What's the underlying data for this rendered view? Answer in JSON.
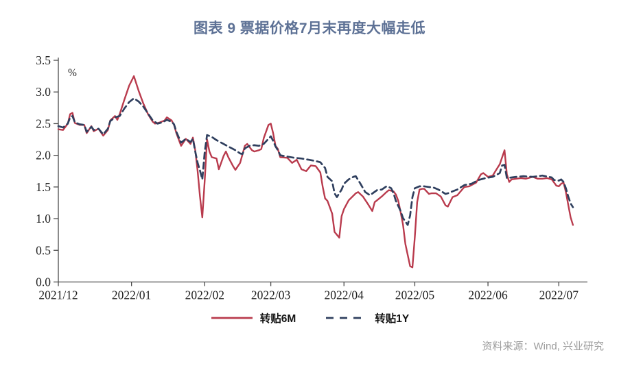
{
  "source_note": "资料来源：Wind, 兴业研究",
  "colors": {
    "title_text": "#5d7195",
    "axis": "#4a4a4a",
    "tick_label_text": "#1f1f1f",
    "source_text": "#9c9c9c",
    "series_6m": "#b93b4d",
    "series_1y": "#2f3f5e"
  },
  "chart_data": {
    "type": "line",
    "title": "图表 9 票据价格7月末再度大幅走低",
    "unit_label": "%",
    "xlabel": "",
    "ylabel": "",
    "ylim": [
      0.0,
      3.5
    ],
    "ytick_step": 0.5,
    "ytick_labels": [
      "0.0",
      "0.5",
      "1.0",
      "1.5",
      "2.0",
      "2.5",
      "3.0",
      "3.5"
    ],
    "grid": false,
    "legend_position": "bottom",
    "x_domain": [
      "2021-12-01",
      "2022-07-14"
    ],
    "xticks": [
      {
        "label": "2021/12",
        "date": "2021-12-01"
      },
      {
        "label": "2022/01",
        "date": "2022-01-01"
      },
      {
        "label": "2022/02",
        "date": "2022-02-01"
      },
      {
        "label": "2022/03",
        "date": "2022-03-01"
      },
      {
        "label": "2022/04",
        "date": "2022-04-01"
      },
      {
        "label": "2022/05",
        "date": "2022-05-01"
      },
      {
        "label": "2022/06",
        "date": "2022-06-01"
      },
      {
        "label": "2022/07",
        "date": "2022-07-01"
      }
    ],
    "series": [
      {
        "name": "转贴6M",
        "color": "#b93b4d",
        "line_style": "solid",
        "points": [
          [
            "2021-12-01",
            2.41
          ],
          [
            "2021-12-03",
            2.4
          ],
          [
            "2021-12-05",
            2.5
          ],
          [
            "2021-12-06",
            2.65
          ],
          [
            "2021-12-07",
            2.67
          ],
          [
            "2021-12-08",
            2.51
          ],
          [
            "2021-12-10",
            2.48
          ],
          [
            "2021-12-12",
            2.48
          ],
          [
            "2021-12-13",
            2.35
          ],
          [
            "2021-12-15",
            2.46
          ],
          [
            "2021-12-16",
            2.38
          ],
          [
            "2021-12-18",
            2.42
          ],
          [
            "2021-12-20",
            2.31
          ],
          [
            "2021-12-22",
            2.4
          ],
          [
            "2021-12-23",
            2.55
          ],
          [
            "2021-12-25",
            2.62
          ],
          [
            "2021-12-26",
            2.56
          ],
          [
            "2021-12-27",
            2.65
          ],
          [
            "2021-12-29",
            2.88
          ],
          [
            "2021-12-31",
            3.1
          ],
          [
            "2022-01-02",
            3.25
          ],
          [
            "2022-01-04",
            3.02
          ],
          [
            "2022-01-06",
            2.82
          ],
          [
            "2022-01-08",
            2.65
          ],
          [
            "2022-01-10",
            2.53
          ],
          [
            "2022-01-11",
            2.5
          ],
          [
            "2022-01-13",
            2.52
          ],
          [
            "2022-01-15",
            2.55
          ],
          [
            "2022-01-16",
            2.6
          ],
          [
            "2022-01-18",
            2.55
          ],
          [
            "2022-01-19",
            2.48
          ],
          [
            "2022-01-20",
            2.35
          ],
          [
            "2022-01-22",
            2.15
          ],
          [
            "2022-01-24",
            2.26
          ],
          [
            "2022-01-26",
            2.18
          ],
          [
            "2022-01-27",
            2.28
          ],
          [
            "2022-01-28",
            2.08
          ],
          [
            "2022-01-29",
            1.75
          ],
          [
            "2022-01-30",
            1.35
          ],
          [
            "2022-01-31",
            1.02
          ],
          [
            "2022-02-01",
            1.6
          ],
          [
            "2022-02-02",
            2.25
          ],
          [
            "2022-02-03",
            2.06
          ],
          [
            "2022-02-04",
            1.97
          ],
          [
            "2022-02-06",
            1.95
          ],
          [
            "2022-02-07",
            1.78
          ],
          [
            "2022-02-09",
            1.99
          ],
          [
            "2022-02-10",
            2.06
          ],
          [
            "2022-02-11",
            1.97
          ],
          [
            "2022-02-13",
            1.83
          ],
          [
            "2022-02-14",
            1.77
          ],
          [
            "2022-02-16",
            1.88
          ],
          [
            "2022-02-18",
            2.15
          ],
          [
            "2022-02-19",
            2.18
          ],
          [
            "2022-02-21",
            2.08
          ],
          [
            "2022-02-22",
            2.06
          ],
          [
            "2022-02-24",
            2.08
          ],
          [
            "2022-02-25",
            2.1
          ],
          [
            "2022-02-26",
            2.27
          ],
          [
            "2022-02-28",
            2.48
          ],
          [
            "2022-03-01",
            2.5
          ],
          [
            "2022-03-02",
            2.35
          ],
          [
            "2022-03-03",
            2.15
          ],
          [
            "2022-03-04",
            2.1
          ],
          [
            "2022-03-05",
            1.97
          ],
          [
            "2022-03-08",
            1.96
          ],
          [
            "2022-03-10",
            1.88
          ],
          [
            "2022-03-12",
            1.93
          ],
          [
            "2022-03-14",
            1.78
          ],
          [
            "2022-03-16",
            1.75
          ],
          [
            "2022-03-18",
            1.84
          ],
          [
            "2022-03-20",
            1.83
          ],
          [
            "2022-03-22",
            1.73
          ],
          [
            "2022-03-23",
            1.5
          ],
          [
            "2022-03-24",
            1.32
          ],
          [
            "2022-03-25",
            1.28
          ],
          [
            "2022-03-27",
            1.08
          ],
          [
            "2022-03-28",
            0.79
          ],
          [
            "2022-03-30",
            0.7
          ],
          [
            "2022-03-31",
            1.04
          ],
          [
            "2022-04-01",
            1.15
          ],
          [
            "2022-04-03",
            1.29
          ],
          [
            "2022-04-06",
            1.4
          ],
          [
            "2022-04-07",
            1.42
          ],
          [
            "2022-04-09",
            1.35
          ],
          [
            "2022-04-11",
            1.24
          ],
          [
            "2022-04-13",
            1.12
          ],
          [
            "2022-04-14",
            1.26
          ],
          [
            "2022-04-15",
            1.29
          ],
          [
            "2022-04-17",
            1.35
          ],
          [
            "2022-04-19",
            1.42
          ],
          [
            "2022-04-20",
            1.45
          ],
          [
            "2022-04-22",
            1.43
          ],
          [
            "2022-04-23",
            1.38
          ],
          [
            "2022-04-24",
            1.28
          ],
          [
            "2022-04-25",
            1.1
          ],
          [
            "2022-04-26",
            0.91
          ],
          [
            "2022-04-27",
            0.6
          ],
          [
            "2022-04-29",
            0.25
          ],
          [
            "2022-04-30",
            0.23
          ],
          [
            "2022-05-01",
            0.7
          ],
          [
            "2022-05-02",
            1.26
          ],
          [
            "2022-05-03",
            1.46
          ],
          [
            "2022-05-04",
            1.47
          ],
          [
            "2022-05-05",
            1.47
          ],
          [
            "2022-05-07",
            1.39
          ],
          [
            "2022-05-08",
            1.4
          ],
          [
            "2022-05-10",
            1.4
          ],
          [
            "2022-05-12",
            1.35
          ],
          [
            "2022-05-14",
            1.21
          ],
          [
            "2022-05-15",
            1.19
          ],
          [
            "2022-05-17",
            1.34
          ],
          [
            "2022-05-19",
            1.37
          ],
          [
            "2022-05-22",
            1.5
          ],
          [
            "2022-05-24",
            1.51
          ],
          [
            "2022-05-27",
            1.57
          ],
          [
            "2022-05-29",
            1.7
          ],
          [
            "2022-05-30",
            1.72
          ],
          [
            "2022-06-01",
            1.66
          ],
          [
            "2022-06-03",
            1.68
          ],
          [
            "2022-06-05",
            1.8
          ],
          [
            "2022-06-06",
            1.86
          ],
          [
            "2022-06-08",
            2.08
          ],
          [
            "2022-06-09",
            1.7
          ],
          [
            "2022-06-10",
            1.58
          ],
          [
            "2022-06-11",
            1.62
          ],
          [
            "2022-06-13",
            1.63
          ],
          [
            "2022-06-15",
            1.64
          ],
          [
            "2022-06-17",
            1.63
          ],
          [
            "2022-06-20",
            1.66
          ],
          [
            "2022-06-22",
            1.63
          ],
          [
            "2022-06-24",
            1.63
          ],
          [
            "2022-06-26",
            1.64
          ],
          [
            "2022-06-28",
            1.62
          ],
          [
            "2022-06-30",
            1.52
          ],
          [
            "2022-07-01",
            1.51
          ],
          [
            "2022-07-02",
            1.55
          ],
          [
            "2022-07-03",
            1.57
          ],
          [
            "2022-07-04",
            1.42
          ],
          [
            "2022-07-05",
            1.22
          ],
          [
            "2022-07-06",
            1.02
          ],
          [
            "2022-07-07",
            0.9
          ]
        ]
      },
      {
        "name": "转贴1Y",
        "color": "#2f3f5e",
        "line_style": "dashed",
        "points": [
          [
            "2021-12-01",
            2.46
          ],
          [
            "2021-12-03",
            2.44
          ],
          [
            "2021-12-05",
            2.5
          ],
          [
            "2021-12-06",
            2.6
          ],
          [
            "2021-12-07",
            2.62
          ],
          [
            "2021-12-08",
            2.52
          ],
          [
            "2021-12-10",
            2.49
          ],
          [
            "2021-12-12",
            2.48
          ],
          [
            "2021-12-13",
            2.37
          ],
          [
            "2021-12-15",
            2.45
          ],
          [
            "2021-12-16",
            2.4
          ],
          [
            "2021-12-18",
            2.42
          ],
          [
            "2021-12-20",
            2.33
          ],
          [
            "2021-12-22",
            2.42
          ],
          [
            "2021-12-23",
            2.54
          ],
          [
            "2021-12-25",
            2.6
          ],
          [
            "2021-12-27",
            2.62
          ],
          [
            "2021-12-29",
            2.74
          ],
          [
            "2021-12-31",
            2.84
          ],
          [
            "2022-01-02",
            2.9
          ],
          [
            "2022-01-04",
            2.85
          ],
          [
            "2022-01-06",
            2.77
          ],
          [
            "2022-01-08",
            2.66
          ],
          [
            "2022-01-10",
            2.55
          ],
          [
            "2022-01-12",
            2.5
          ],
          [
            "2022-01-14",
            2.52
          ],
          [
            "2022-01-16",
            2.56
          ],
          [
            "2022-01-18",
            2.53
          ],
          [
            "2022-01-19",
            2.49
          ],
          [
            "2022-01-20",
            2.37
          ],
          [
            "2022-01-22",
            2.2
          ],
          [
            "2022-01-24",
            2.26
          ],
          [
            "2022-01-26",
            2.21
          ],
          [
            "2022-01-27",
            2.26
          ],
          [
            "2022-01-28",
            2.06
          ],
          [
            "2022-01-29",
            1.88
          ],
          [
            "2022-01-30",
            1.76
          ],
          [
            "2022-01-31",
            1.62
          ],
          [
            "2022-02-01",
            2.05
          ],
          [
            "2022-02-02",
            2.32
          ],
          [
            "2022-02-04",
            2.29
          ],
          [
            "2022-02-06",
            2.24
          ],
          [
            "2022-02-08",
            2.2
          ],
          [
            "2022-02-10",
            2.16
          ],
          [
            "2022-02-12",
            2.12
          ],
          [
            "2022-02-14",
            2.08
          ],
          [
            "2022-02-16",
            2.03
          ],
          [
            "2022-02-17",
            2.02
          ],
          [
            "2022-02-18",
            2.11
          ],
          [
            "2022-02-20",
            2.15
          ],
          [
            "2022-02-22",
            2.16
          ],
          [
            "2022-02-24",
            2.15
          ],
          [
            "2022-02-26",
            2.18
          ],
          [
            "2022-02-28",
            2.26
          ],
          [
            "2022-03-01",
            2.3
          ],
          [
            "2022-03-02",
            2.23
          ],
          [
            "2022-03-03",
            2.14
          ],
          [
            "2022-03-04",
            2.08
          ],
          [
            "2022-03-05",
            2.0
          ],
          [
            "2022-03-08",
            1.98
          ],
          [
            "2022-03-11",
            1.96
          ],
          [
            "2022-03-14",
            1.95
          ],
          [
            "2022-03-17",
            1.93
          ],
          [
            "2022-03-20",
            1.91
          ],
          [
            "2022-03-22",
            1.89
          ],
          [
            "2022-03-24",
            1.8
          ],
          [
            "2022-03-25",
            1.66
          ],
          [
            "2022-03-27",
            1.59
          ],
          [
            "2022-03-28",
            1.4
          ],
          [
            "2022-03-29",
            1.34
          ],
          [
            "2022-03-31",
            1.46
          ],
          [
            "2022-04-01",
            1.55
          ],
          [
            "2022-04-03",
            1.62
          ],
          [
            "2022-04-05",
            1.66
          ],
          [
            "2022-04-06",
            1.67
          ],
          [
            "2022-04-08",
            1.55
          ],
          [
            "2022-04-10",
            1.42
          ],
          [
            "2022-04-12",
            1.37
          ],
          [
            "2022-04-15",
            1.45
          ],
          [
            "2022-04-17",
            1.46
          ],
          [
            "2022-04-19",
            1.51
          ],
          [
            "2022-04-20",
            1.5
          ],
          [
            "2022-04-21",
            1.48
          ],
          [
            "2022-04-22",
            1.4
          ],
          [
            "2022-04-23",
            1.28
          ],
          [
            "2022-04-25",
            1.12
          ],
          [
            "2022-04-26",
            1.01
          ],
          [
            "2022-04-28",
            0.9
          ],
          [
            "2022-04-29",
            1.05
          ],
          [
            "2022-04-30",
            1.34
          ],
          [
            "2022-05-01",
            1.48
          ],
          [
            "2022-05-03",
            1.51
          ],
          [
            "2022-05-05",
            1.51
          ],
          [
            "2022-05-07",
            1.5
          ],
          [
            "2022-05-09",
            1.49
          ],
          [
            "2022-05-11",
            1.46
          ],
          [
            "2022-05-14",
            1.39
          ],
          [
            "2022-05-15",
            1.4
          ],
          [
            "2022-05-17",
            1.43
          ],
          [
            "2022-05-19",
            1.46
          ],
          [
            "2022-05-22",
            1.53
          ],
          [
            "2022-05-25",
            1.55
          ],
          [
            "2022-05-28",
            1.61
          ],
          [
            "2022-05-31",
            1.64
          ],
          [
            "2022-06-03",
            1.66
          ],
          [
            "2022-06-06",
            1.72
          ],
          [
            "2022-06-07",
            1.84
          ],
          [
            "2022-06-08",
            1.85
          ],
          [
            "2022-06-09",
            1.64
          ],
          [
            "2022-06-11",
            1.65
          ],
          [
            "2022-06-13",
            1.66
          ],
          [
            "2022-06-16",
            1.67
          ],
          [
            "2022-06-20",
            1.66
          ],
          [
            "2022-06-24",
            1.68
          ],
          [
            "2022-06-28",
            1.65
          ],
          [
            "2022-06-29",
            1.61
          ],
          [
            "2022-07-01",
            1.6
          ],
          [
            "2022-07-02",
            1.62
          ],
          [
            "2022-07-03",
            1.58
          ],
          [
            "2022-07-04",
            1.48
          ],
          [
            "2022-07-05",
            1.35
          ],
          [
            "2022-07-06",
            1.24
          ],
          [
            "2022-07-07",
            1.18
          ]
        ]
      }
    ]
  }
}
